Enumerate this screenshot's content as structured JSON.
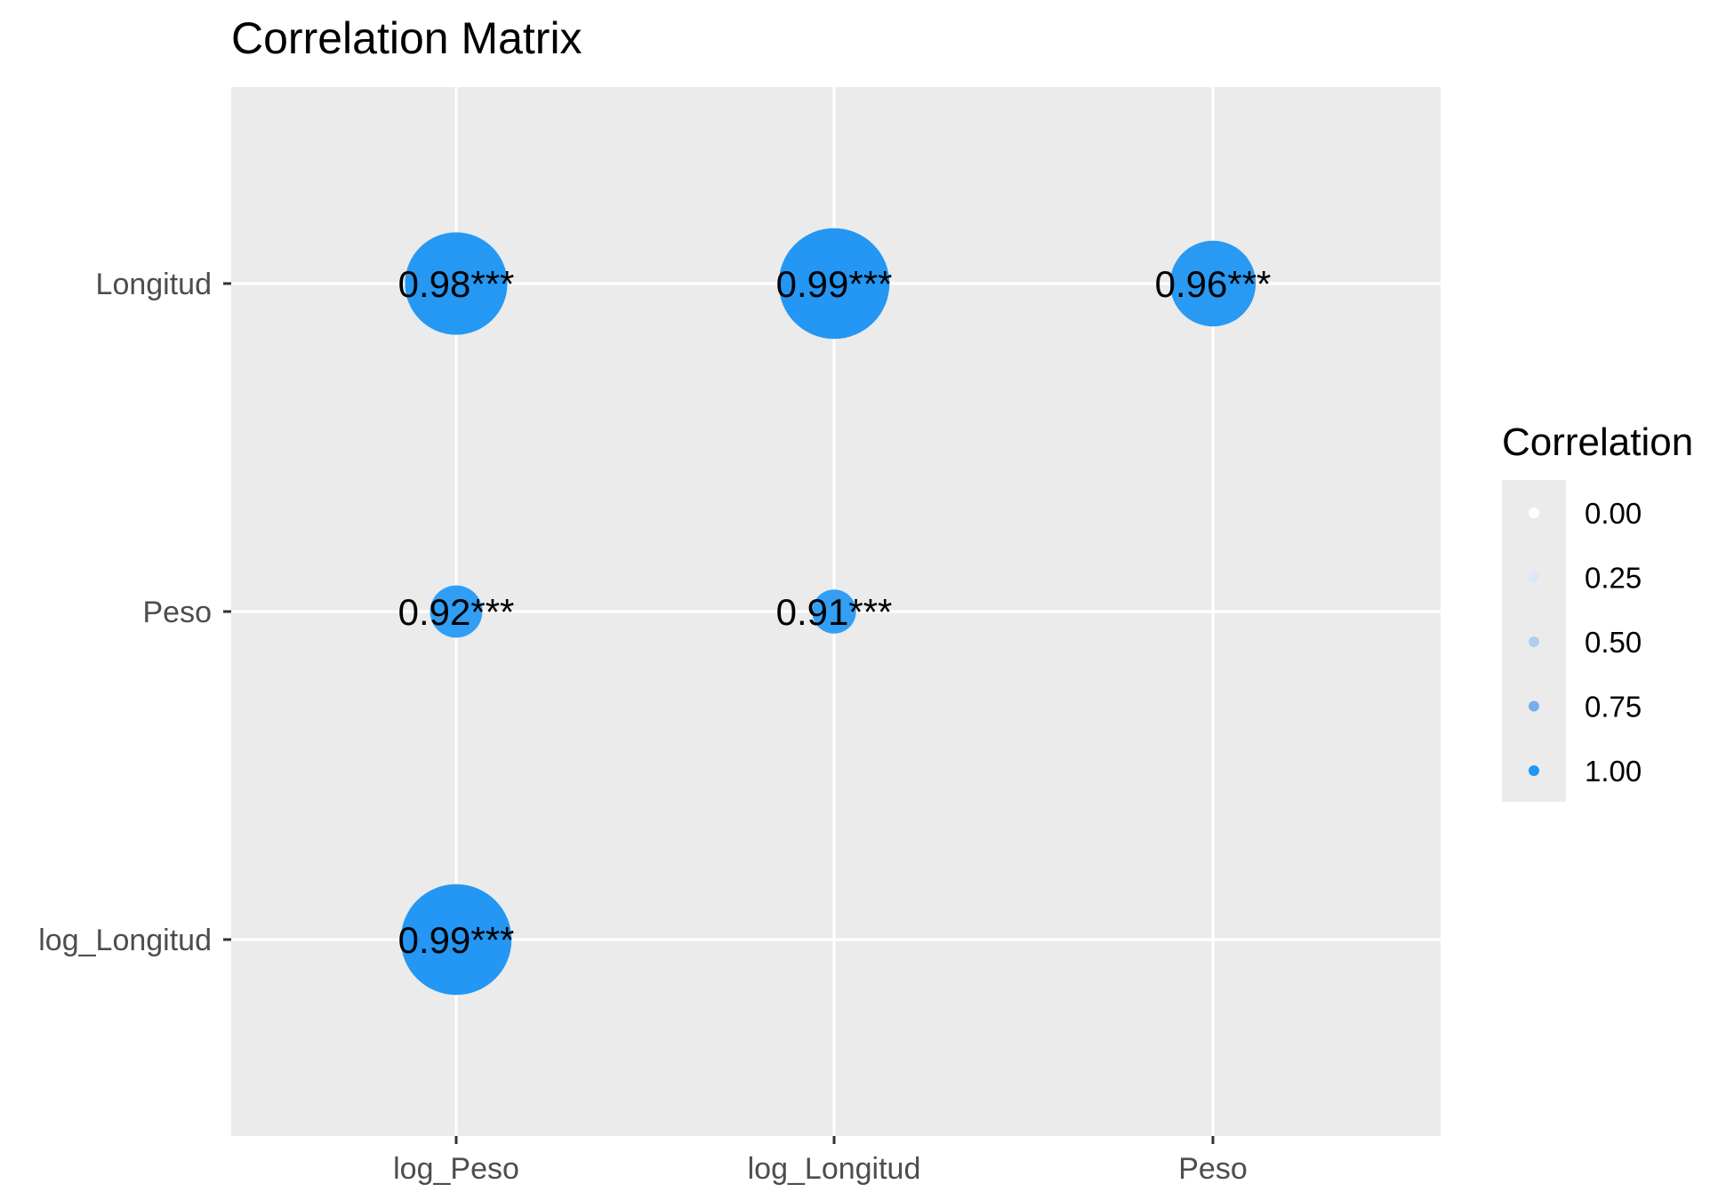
{
  "chart_data": {
    "type": "scatter",
    "title": "Correlation Matrix",
    "x_categories": [
      "log_Peso",
      "log_Longitud",
      "Peso"
    ],
    "y_categories": [
      "Longitud",
      "Peso",
      "log_Longitud"
    ],
    "cells": [
      {
        "x": "log_Peso",
        "y": "Longitud",
        "value": 0.98,
        "label": "0.98***"
      },
      {
        "x": "log_Longitud",
        "y": "Longitud",
        "value": 0.99,
        "label": "0.99***"
      },
      {
        "x": "Peso",
        "y": "Longitud",
        "value": 0.96,
        "label": "0.96***"
      },
      {
        "x": "log_Peso",
        "y": "Peso",
        "value": 0.92,
        "label": "0.92***"
      },
      {
        "x": "log_Longitud",
        "y": "Peso",
        "value": 0.91,
        "label": "0.91***"
      },
      {
        "x": "log_Peso",
        "y": "log_Longitud",
        "value": 0.99,
        "label": "0.99***"
      }
    ],
    "size_range": [
      0.9,
      1.0
    ],
    "legend": {
      "title": "Correlation",
      "position": "right",
      "entries": [
        {
          "label": "0.00",
          "color": "#ffffff"
        },
        {
          "label": "0.25",
          "color": "#dde7fa"
        },
        {
          "label": "0.50",
          "color": "#b2cbf3"
        },
        {
          "label": "0.75",
          "color": "#75aeee"
        },
        {
          "label": "1.00",
          "color": "#2196f3"
        }
      ]
    },
    "colors": {
      "panel_background": "#ebebeb",
      "grid": "#ffffff",
      "high": "#2196f3",
      "low": "#ffffff"
    },
    "grid": true
  }
}
